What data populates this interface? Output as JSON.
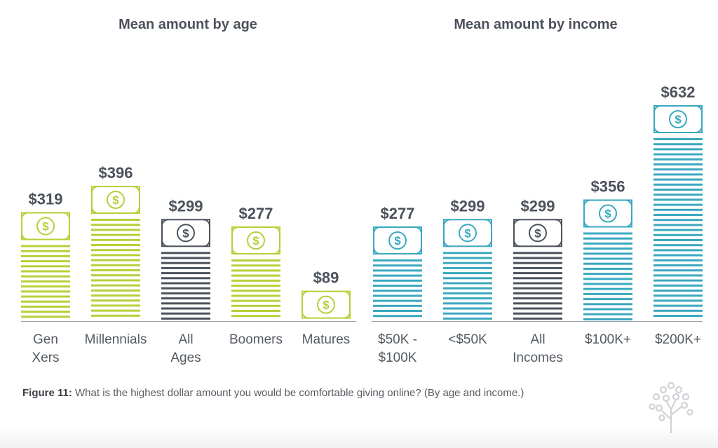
{
  "chart_data": [
    {
      "type": "bar",
      "title": "Mean amount by age",
      "categories": [
        "Gen Xers",
        "Millennials",
        "All Ages",
        "Boomers",
        "Matures"
      ],
      "category_labels": [
        [
          "Gen",
          "Xers"
        ],
        [
          "Millennials"
        ],
        [
          "All",
          "Ages"
        ],
        [
          "Boomers"
        ],
        [
          "Matures"
        ]
      ],
      "values": [
        319,
        396,
        299,
        277,
        89
      ],
      "value_labels": [
        "$319",
        "$396",
        "$299",
        "$277",
        "$89"
      ],
      "highlight": "All Ages",
      "bar_color": "#b9cf3a",
      "highlight_color": "#4b525c",
      "grid": false,
      "legend": "none"
    },
    {
      "type": "bar",
      "title": "Mean amount by income",
      "categories": [
        "$50K - $100K",
        "<$50K",
        "All Incomes",
        "$100K+",
        "$200K+"
      ],
      "category_labels": [
        [
          "$50K -",
          "$100K"
        ],
        [
          "<$50K"
        ],
        [
          "All",
          "Incomes"
        ],
        [
          "$100K+"
        ],
        [
          "$200K+"
        ]
      ],
      "values": [
        277,
        299,
        299,
        356,
        632
      ],
      "value_labels": [
        "$277",
        "$299",
        "$299",
        "$356",
        "$632"
      ],
      "highlight": "All Incomes",
      "bar_color": "#3aa9c0",
      "highlight_color": "#4b525c",
      "grid": false,
      "legend": "none"
    }
  ],
  "bill_icon": "dollar-bill-icon",
  "caption": {
    "label": "Figure 11:",
    "text": " What is the highest dollar amount you would be comfortable giving online? (By age and income.)"
  },
  "logo_icon": "tree-logo-icon",
  "colors": {
    "title": "#4b525c",
    "value_label": "#4b525c",
    "category_label": "#555b63",
    "axis": "#9aa0a6"
  }
}
